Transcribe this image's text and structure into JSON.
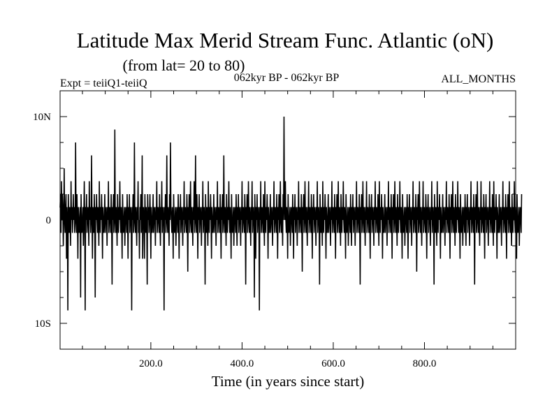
{
  "chart_data": {
    "type": "line",
    "title": "Latitude Max Merid Stream Func. Atlantic (oN)",
    "subtitle": "(from lat= 20 to 80)",
    "header_left": "Expt = teiiQ1-teiiQ",
    "header_center": "062kyr BP - 062kyr BP",
    "header_right": "ALL_MONTHS",
    "xlabel": "Time (in years since start)",
    "ylabel": "",
    "xlim": [
      1,
      1000
    ],
    "ylim": [
      -12.5,
      12.5
    ],
    "x_ticks": [
      200,
      400,
      600,
      800
    ],
    "x_tick_labels": [
      "200.0",
      "400.0",
      "600.0",
      "800.0"
    ],
    "x_minor_step": 50,
    "y_ticks": [
      10,
      0,
      -10
    ],
    "y_tick_labels": [
      "10N",
      "0",
      "10S"
    ],
    "y_minor_step": 2.5,
    "grid": false,
    "line_color": "#000000",
    "series": [
      {
        "x_start": 1,
        "x_step": 1,
        "values": [
          1.2,
          2.5,
          -1.25,
          3.75,
          0,
          2.5,
          1.25,
          -2.5,
          0,
          5,
          0,
          -1.25,
          1.25,
          2.5,
          -3.75,
          1.25,
          0,
          -8.75,
          2.5,
          0,
          -1.25,
          1.25,
          0,
          -2.5,
          3.75,
          0,
          1.25,
          -1.25,
          0,
          2.5,
          0,
          1.25,
          -1.25,
          0,
          7.5,
          0,
          -1.25,
          2.5,
          0,
          -3.75,
          1.25,
          0,
          -1.25,
          0,
          1.25,
          -7.5,
          2.5,
          0,
          -1.25,
          0,
          1.25,
          -2.5,
          0,
          3.75,
          0,
          -8.75,
          1.25,
          0,
          2.5,
          -1.25,
          0,
          1.25,
          0,
          -2.5,
          3.75,
          0,
          1.25,
          -1.25,
          0,
          6.25,
          0,
          -3.75,
          1.25,
          0,
          -1.25,
          2.5,
          0,
          -7.5,
          1.25,
          0,
          2.5,
          0,
          -1.25,
          1.25,
          0,
          -2.5,
          3.75,
          0,
          -1.25,
          1.25,
          0,
          2.5,
          0,
          -3.75,
          1.25,
          0,
          -1.25,
          0,
          2.5,
          -1.25,
          0,
          1.25,
          0,
          -2.5,
          1.25,
          0,
          3.75,
          -1.25,
          0,
          1.25,
          0,
          -1.25,
          2.5,
          0,
          -6.25,
          1.25,
          0,
          2.5,
          -1.25,
          0,
          8.75,
          0,
          -1.25,
          1.25,
          0,
          -2.5,
          2.5,
          0,
          -1.25,
          1.25,
          0,
          3.75,
          0,
          -1.25,
          1.25,
          0,
          -3.75,
          2.5,
          0,
          -1.25,
          0,
          1.25,
          -2.5,
          0,
          1.25,
          0,
          -1.25,
          2.5,
          0,
          -3.75,
          1.25,
          0,
          2.5,
          -1.25,
          0,
          1.25,
          0,
          -8.75,
          1.25,
          0,
          2.5,
          -1.25,
          0,
          7.5,
          0,
          -1.25,
          1.25,
          0,
          -2.5,
          1.25,
          0,
          3.75,
          -1.25,
          0,
          -3.75,
          1.25,
          0,
          2.5,
          -1.25,
          0,
          6.25,
          -3.75,
          0,
          1.25,
          0,
          -3.75,
          2.5,
          0,
          -1.25,
          1.25,
          0,
          -6.25,
          2.5,
          0,
          1.25,
          -1.25,
          0,
          2.5,
          0,
          -3.75,
          1.25,
          0,
          -1.25,
          0,
          2.5,
          -1.25,
          0,
          1.25,
          0,
          -2.5,
          1.25,
          0,
          3.75,
          -1.25,
          0,
          1.25,
          0,
          -1.25,
          2.5,
          0,
          -2.5,
          1.25,
          0,
          3.75,
          -1.25,
          0,
          1.25,
          0,
          -8.75,
          1.25,
          0,
          2.5,
          -1.25,
          0,
          6.25,
          0,
          -1.25,
          1.25,
          0,
          -2.5,
          2.5,
          0,
          7.5,
          1.25,
          0,
          -1.25,
          1.25,
          0,
          -3.75,
          2.5,
          0,
          -1.25,
          0,
          1.25,
          -2.5,
          0,
          1.25,
          0,
          -1.25,
          2.5,
          0,
          -3.75,
          1.25,
          0,
          2.5,
          -1.25,
          0,
          1.25,
          0,
          -2.5,
          1.25,
          0,
          3.75,
          -1.25,
          0,
          1.25,
          0,
          -1.25,
          2.5,
          0,
          -5,
          1.25,
          0,
          2.5,
          -1.25,
          0,
          3.75,
          0,
          -1.25,
          1.25,
          0,
          -2.5,
          1.25,
          0,
          3.75,
          -1.25,
          0,
          6.25,
          0,
          -1.25,
          2.5,
          0,
          -3.75,
          1.25,
          0,
          2.5,
          -1.25,
          0,
          1.25,
          0,
          -2.5,
          1.25,
          0,
          3.75,
          -1.25,
          0,
          1.25,
          0,
          -6.25,
          2.5,
          0,
          -1.25,
          1.25,
          0,
          -2.5,
          3.75,
          0,
          -1.25,
          1.25,
          0,
          2.5,
          0,
          -3.75,
          1.25,
          0,
          -1.25,
          0,
          2.5,
          -1.25,
          0,
          1.25,
          0,
          -2.5,
          1.25,
          0,
          3.75,
          -1.25,
          0,
          1.25,
          0,
          -1.25,
          2.5,
          0,
          -3.75,
          1.25,
          0,
          2.5,
          -1.25,
          0,
          6.25,
          0,
          -1.25,
          1.25,
          0,
          -2.5,
          2.5,
          0,
          -1.25,
          1.25,
          0,
          3.75,
          0,
          -1.25,
          1.25,
          0,
          -3.75,
          2.5,
          0,
          -1.25,
          0,
          1.25,
          -2.5,
          0,
          1.25,
          0,
          -1.25,
          2.5,
          0,
          -2.5,
          1.25,
          0,
          2.5,
          -1.25,
          0,
          1.25,
          0,
          -2.5,
          1.25,
          0,
          3.75,
          -1.25,
          0,
          1.25,
          0,
          -1.25,
          2.5,
          0,
          -6.25,
          1.25,
          0,
          2.5,
          -1.25,
          0,
          3.75,
          0,
          -1.25,
          1.25,
          0,
          -2.5,
          1.25,
          0,
          3.75,
          -1.25,
          0,
          1.25,
          0,
          -7.5,
          2.5,
          0,
          -3.75,
          1.25,
          0,
          2.5,
          -1.25,
          0,
          1.25,
          0,
          -8.75,
          1.25,
          0,
          3.75,
          -1.25,
          0,
          1.25,
          0,
          -1.25,
          2.5,
          0,
          -2.5,
          3.75,
          0,
          -1.25,
          1.25,
          0,
          2.5,
          0,
          -3.75,
          1.25,
          0,
          -1.25,
          0,
          2.5,
          -1.25,
          0,
          1.25,
          0,
          -2.5,
          1.25,
          0,
          3.75,
          -1.25,
          0,
          1.25,
          0,
          -1.25,
          2.5,
          0,
          -3.75,
          1.25,
          0,
          2.5,
          -1.25,
          0,
          3.75,
          0,
          -1.25,
          1.25,
          0,
          -2.5,
          2.5,
          0,
          10,
          1.25,
          0,
          3.75,
          0,
          -1.25,
          1.25,
          0,
          -3.75,
          2.5,
          0,
          -1.25,
          0,
          1.25,
          -2.5,
          0,
          1.25,
          0,
          -1.25,
          2.5,
          0,
          -3.75,
          1.25,
          0,
          2.5,
          -1.25,
          0,
          1.25,
          0,
          -2.5,
          1.25,
          0,
          3.75,
          -1.25,
          0,
          1.25,
          0,
          -1.25,
          2.5,
          0,
          -5,
          1.25,
          0,
          2.5,
          -1.25,
          0,
          3.75,
          0,
          -1.25,
          1.25,
          0,
          -2.5,
          1.25,
          0,
          3.75,
          -1.25,
          0,
          1.25,
          0,
          -1.25,
          2.5,
          0,
          -3.75,
          1.25,
          0,
          2.5,
          -1.25,
          0,
          1.25,
          0,
          -2.5,
          1.25,
          0,
          3.75,
          -1.25,
          0,
          1.25,
          0,
          -6.25,
          2.5,
          0,
          -1.25,
          1.25,
          0,
          -2.5,
          3.75,
          0,
          -1.25,
          1.25,
          0,
          2.5,
          0,
          -3.75,
          1.25,
          0,
          -1.25,
          0,
          2.5,
          -1.25,
          0,
          1.25,
          0,
          -2.5,
          1.25,
          0,
          3.75,
          -1.25,
          0,
          1.25,
          0,
          -1.25,
          2.5,
          0,
          -3.75,
          1.25,
          0,
          2.5,
          -1.25,
          0,
          3.75,
          0,
          -1.25,
          1.25,
          0,
          -2.5,
          2.5,
          0,
          -1.25,
          1.25,
          0,
          3.75,
          0,
          -1.25,
          1.25,
          0,
          -3.75,
          2.5,
          0,
          -1.25,
          0,
          1.25,
          -2.5,
          0,
          1.25,
          0,
          -1.25,
          2.5,
          0,
          -2.5,
          1.25,
          0,
          2.5,
          -1.25,
          0,
          1.25,
          0,
          -2.5,
          1.25,
          0,
          3.75,
          -1.25,
          0,
          1.25,
          0,
          -1.25,
          2.5,
          0,
          -6.25,
          1.25,
          0,
          2.5,
          -1.25,
          0,
          3.75,
          0,
          -1.25,
          1.25,
          0,
          -2.5,
          1.25,
          0,
          3.75,
          -1.25,
          0,
          1.25,
          0,
          -1.25,
          2.5,
          0,
          -3.75,
          1.25,
          0,
          2.5,
          -1.25,
          0,
          1.25,
          0,
          -2.5,
          1.25,
          0,
          3.75,
          -1.25,
          0,
          1.25,
          0,
          -1.25,
          2.5,
          0,
          -2.5,
          3.75,
          0,
          -1.25,
          1.25,
          0,
          2.5,
          0,
          -3.75,
          1.25,
          0,
          -1.25,
          0,
          2.5,
          -1.25,
          0,
          1.25,
          0,
          -2.5,
          1.25,
          0,
          3.75,
          -1.25,
          0,
          1.25,
          0,
          -1.25,
          2.5,
          0,
          -3.75,
          1.25,
          0,
          2.5,
          -1.25,
          0,
          3.75,
          0,
          -1.25,
          1.25,
          0,
          -2.5,
          2.5,
          0,
          -1.25,
          1.25,
          0,
          3.75,
          0,
          -1.25,
          1.25,
          0,
          -3.75,
          2.5,
          0,
          -1.25,
          0,
          1.25,
          -2.5,
          0,
          1.25,
          0,
          -1.25,
          2.5,
          0,
          -3.75,
          1.25,
          0,
          2.5,
          -1.25,
          0,
          1.25,
          0,
          -2.5,
          1.25,
          0,
          3.75,
          -1.25,
          0,
          1.25,
          0,
          -1.25,
          2.5,
          0,
          -5,
          1.25,
          0,
          2.5,
          -1.25,
          0,
          3.75,
          0,
          -1.25,
          1.25,
          0,
          -2.5,
          1.25,
          0,
          3.75,
          -1.25,
          0,
          1.25,
          0,
          -1.25,
          2.5,
          0,
          -3.75,
          1.25,
          0,
          2.5,
          -1.25,
          0,
          1.25,
          0,
          -2.5,
          1.25,
          0,
          3.75,
          -1.25,
          0,
          1.25,
          0,
          -6.25,
          2.5,
          0,
          -1.25,
          1.25,
          0,
          -2.5,
          3.75,
          0,
          -1.25,
          1.25,
          0,
          2.5,
          0,
          -3.75,
          1.25,
          0,
          -1.25,
          0,
          2.5,
          -1.25,
          0,
          1.25,
          0,
          -2.5,
          1.25,
          0,
          3.75,
          -1.25,
          0,
          1.25,
          0,
          -1.25,
          2.5,
          0,
          -3.75,
          1.25,
          0,
          2.5,
          -1.25,
          0,
          3.75,
          0,
          -1.25,
          1.25,
          0,
          -2.5,
          2.5,
          0,
          -1.25,
          1.25,
          0,
          3.75,
          0,
          -1.25,
          1.25,
          0,
          -3.75,
          2.5,
          0,
          -1.25,
          0,
          1.25,
          -2.5,
          0,
          1.25,
          0,
          -1.25,
          2.5,
          0,
          -2.5,
          1.25,
          0,
          2.5,
          -1.25,
          0,
          1.25,
          0,
          -2.5,
          1.25,
          0,
          3.75,
          -1.25,
          0,
          1.25,
          0,
          -1.25,
          2.5,
          0,
          -6.25,
          1.25,
          0,
          2.5,
          -1.25,
          0,
          3.75,
          0,
          -1.25,
          1.25,
          0,
          -2.5,
          1.25,
          0,
          3.75,
          -1.25,
          0,
          1.25,
          0,
          -1.25,
          2.5,
          0,
          -3.75,
          1.25,
          0,
          2.5,
          -1.25,
          0,
          1.25,
          0,
          -2.5,
          1.25,
          0,
          3.75,
          -1.25,
          0,
          1.25,
          0,
          -1.25,
          2.5,
          0,
          -2.5,
          3.75,
          0,
          -1.25,
          1.25,
          0,
          2.5,
          0,
          -3.75,
          1.25,
          0,
          -1.25,
          0,
          2.5,
          -1.25,
          0,
          1.25,
          0,
          -2.5,
          1.25,
          0,
          3.75,
          -1.25,
          0,
          1.25,
          0,
          -1.25,
          2.5,
          0,
          -3.75,
          1.25,
          0,
          2.5,
          -1.25,
          0,
          3.75,
          0,
          -1.25,
          1.25,
          0,
          -2.5,
          2.5,
          0,
          -1.25,
          1.25,
          0,
          3.75,
          0,
          -1.25,
          1.25,
          0,
          -3.75,
          2.5,
          0,
          -1.25,
          0,
          1.25,
          -2.5,
          0,
          1.25,
          0,
          -1.25,
          2.5
        ]
      }
    ]
  }
}
